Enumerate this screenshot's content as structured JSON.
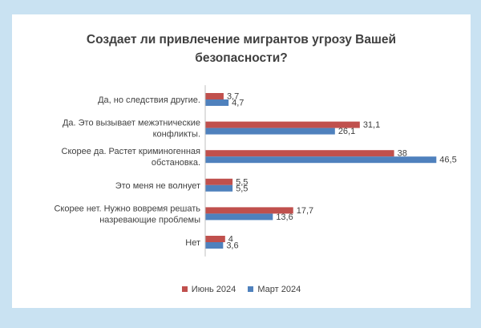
{
  "chart_data": {
    "type": "bar",
    "orientation": "horizontal",
    "title": "Создает ли привлечение мигрантов угрозу Вашей безопасности?",
    "title_lines": [
      "Создает ли привлечение мигрантов угрозу Вашей",
      "безопасности?"
    ],
    "categories": [
      [
        "Да, но следствия другие."
      ],
      [
        "Да. Это вызывает межэтнические",
        "конфликты."
      ],
      [
        "Скорее да. Растет криминогенная",
        "обстановка."
      ],
      [
        "Это меня не волнует"
      ],
      [
        "Скорее нет. Нужно вовремя решать",
        "назревающие проблемы"
      ],
      [
        "Нет"
      ]
    ],
    "series": [
      {
        "name": "Июнь 2024",
        "color": "#c0504d",
        "values": [
          3.7,
          31.1,
          38,
          5.5,
          17.7,
          4
        ],
        "labels": [
          "3,7",
          "31,1",
          "38",
          "5,5",
          "17,7",
          "4"
        ]
      },
      {
        "name": "Март 2024",
        "color": "#4f81bd",
        "values": [
          4.7,
          26.1,
          46.5,
          5.5,
          13.6,
          3.6
        ],
        "labels": [
          "4,7",
          "26,1",
          "46,5",
          "5,5",
          "13,6",
          "3,6"
        ]
      }
    ],
    "xlim": [
      0,
      50
    ],
    "grid": false,
    "legend_position": "bottom"
  }
}
